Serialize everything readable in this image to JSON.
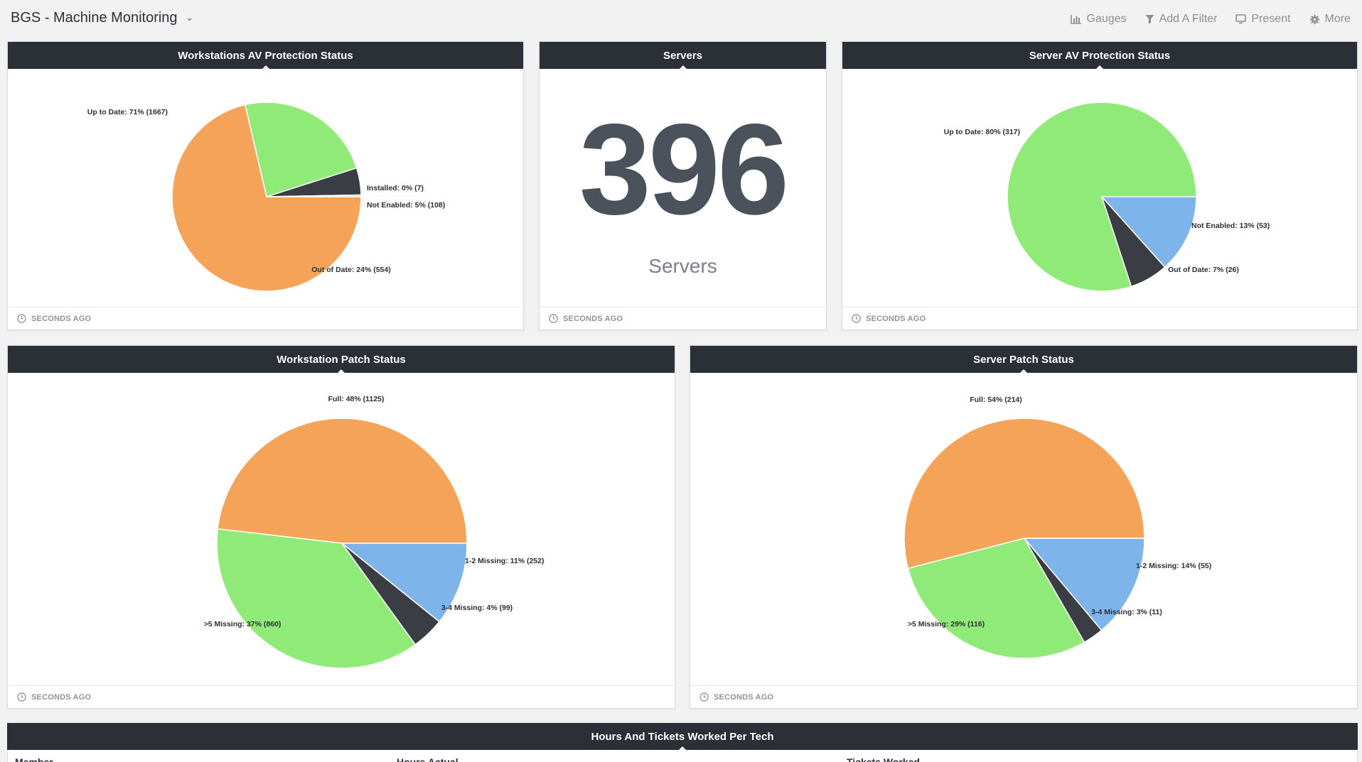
{
  "header": {
    "title": "BGS - Machine Monitoring",
    "toolbar": {
      "gauges": "Gauges",
      "add_filter": "Add A Filter",
      "present": "Present",
      "more": "More"
    }
  },
  "colors": {
    "orange": "#f6a35a",
    "green": "#90ea78",
    "dark": "#3a3d44",
    "blue": "#7db4ea",
    "gray": "#c4c4c4"
  },
  "cards": {
    "ws_av": {
      "title": "Workstations AV Protection Status",
      "footer": "SECONDS AGO"
    },
    "servers": {
      "title": "Servers",
      "number": "396",
      "caption": "Servers",
      "footer": "SECONDS AGO"
    },
    "srv_av": {
      "title": "Server AV Protection Status",
      "footer": "SECONDS AGO"
    },
    "ws_patch": {
      "title": "Workstation Patch Status",
      "footer": "SECONDS AGO"
    },
    "srv_patch": {
      "title": "Server Patch Status",
      "footer": "SECONDS AGO"
    }
  },
  "table": {
    "title": "Hours And Tickets Worked Per Tech",
    "columns": [
      "Member",
      "Hours Actual",
      "Tickets Worked"
    ]
  },
  "chart_data": [
    {
      "id": "ws_av",
      "type": "pie",
      "title": "Workstations AV Protection Status",
      "slices": [
        {
          "label": "Up to Date: 71% (1667)",
          "value": 1667,
          "color": "orange"
        },
        {
          "label": "Out of Date: 24% (554)",
          "value": 554,
          "color": "green"
        },
        {
          "label": "Not Enabled: 5% (108)",
          "value": 108,
          "color": "dark"
        },
        {
          "label": "Installed: 0% (7)",
          "value": 7,
          "color": "gray"
        }
      ]
    },
    {
      "id": "srv_av",
      "type": "pie",
      "title": "Server AV Protection Status",
      "slices": [
        {
          "label": "Up to Date: 80% (317)",
          "value": 317,
          "color": "green"
        },
        {
          "label": "Out of Date: 7% (26)",
          "value": 26,
          "color": "dark"
        },
        {
          "label": "Not Enabled: 13% (53)",
          "value": 53,
          "color": "blue"
        }
      ]
    },
    {
      "id": "ws_patch",
      "type": "pie",
      "title": "Workstation Patch Status",
      "slices": [
        {
          "label": "Full: 48% (1125)",
          "value": 1125,
          "color": "orange"
        },
        {
          "label": ">5 Missing: 37% (860)",
          "value": 860,
          "color": "green"
        },
        {
          "label": "3-4 Missing: 4% (99)",
          "value": 99,
          "color": "dark"
        },
        {
          "label": "1-2 Missing: 11% (252)",
          "value": 252,
          "color": "blue"
        }
      ]
    },
    {
      "id": "srv_patch",
      "type": "pie",
      "title": "Server Patch Status",
      "slices": [
        {
          "label": "Full: 54% (214)",
          "value": 214,
          "color": "orange"
        },
        {
          "label": ">5 Missing: 29% (116)",
          "value": 116,
          "color": "green"
        },
        {
          "label": "3-4 Missing: 3% (11)",
          "value": 11,
          "color": "dark"
        },
        {
          "label": "1-2 Missing: 14% (55)",
          "value": 55,
          "color": "blue"
        }
      ]
    }
  ]
}
